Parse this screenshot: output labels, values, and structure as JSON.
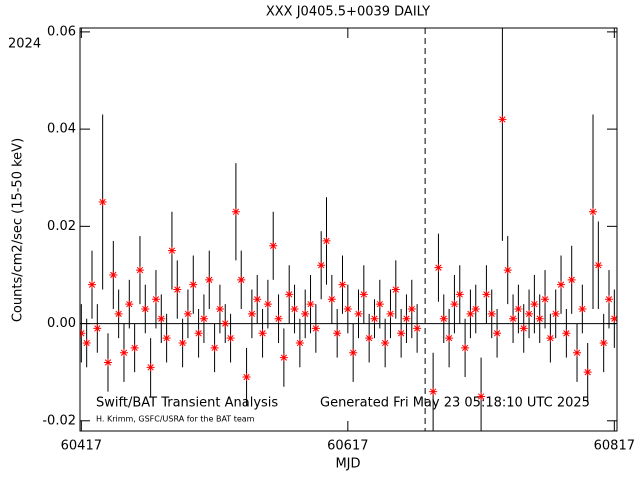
{
  "chart_data": {
    "type": "errorbar-scatter",
    "title": "XXX J0405.5+0039 DAILY",
    "year_label": "2024",
    "xlabel": "MJD",
    "ylabel": "Counts/cm2/sec (15-50 keV)",
    "annotations": [
      "Swift/BAT Transient Analysis",
      "Generated Fri May 23 05:18:10 UTC 2025",
      "H. Krimm, GSFC/USRA for the BAT team"
    ],
    "xlim": [
      60416,
      60819
    ],
    "ylim": [
      -0.0221,
      0.0608
    ],
    "xticks": [
      60417,
      60617,
      60817
    ],
    "yticks": [
      {
        "value": -0.02,
        "label": "-0.02"
      },
      {
        "value": 0,
        "label": "0.00"
      },
      {
        "value": 0.02,
        "label": "0.02"
      },
      {
        "value": 0.04,
        "label": "0.04"
      },
      {
        "value": 0.06,
        "label": "0.06"
      }
    ],
    "vline": 60675,
    "marker_color": "#ff0000",
    "errorbar_color": "#000000",
    "x": [
      60417,
      60421,
      60425,
      60429,
      60433,
      60437,
      60441,
      60445,
      60449,
      60453,
      60457,
      60461,
      60465,
      60469,
      60473,
      60477,
      60481,
      60485,
      60489,
      60493,
      60497,
      60501,
      60505,
      60509,
      60513,
      60517,
      60521,
      60525,
      60529,
      60533,
      60537,
      60541,
      60545,
      60549,
      60553,
      60557,
      60561,
      60565,
      60569,
      60573,
      60577,
      60581,
      60585,
      60589,
      60593,
      60597,
      60601,
      60605,
      60609,
      60613,
      60617,
      60621,
      60625,
      60629,
      60633,
      60637,
      60641,
      60645,
      60649,
      60653,
      60657,
      60661,
      60665,
      60669,
      60681,
      60685,
      60689,
      60693,
      60697,
      60701,
      60705,
      60709,
      60713,
      60717,
      60721,
      60725,
      60729,
      60733,
      60737,
      60741,
      60745,
      60749,
      60753,
      60757,
      60761,
      60765,
      60769,
      60773,
      60777,
      60781,
      60785,
      60789,
      60793,
      60797,
      60801,
      60805,
      60809,
      60813,
      60817
    ],
    "values": [
      -0.002,
      -0.004,
      0.008,
      -0.001,
      0.025,
      -0.008,
      0.01,
      0.002,
      -0.006,
      0.004,
      -0.005,
      0.011,
      0.003,
      -0.009,
      0.005,
      0.001,
      -0.003,
      0.015,
      0.007,
      -0.004,
      0.002,
      0.008,
      -0.002,
      0.001,
      0.009,
      -0.005,
      0.003,
      0.0,
      -0.003,
      0.023,
      0.009,
      -0.011,
      0.002,
      0.005,
      -0.002,
      0.004,
      0.016,
      0.001,
      -0.007,
      0.006,
      0.003,
      -0.004,
      0.002,
      0.004,
      -0.001,
      0.012,
      0.017,
      0.005,
      -0.002,
      0.008,
      0.003,
      -0.006,
      0.002,
      0.006,
      -0.003,
      0.001,
      0.004,
      -0.004,
      0.002,
      0.007,
      -0.002,
      0.001,
      0.003,
      -0.001,
      -0.014,
      0.0115,
      0.001,
      -0.003,
      0.004,
      0.006,
      -0.005,
      0.002,
      0.003,
      -0.015,
      0.006,
      0.002,
      -0.002,
      0.042,
      0.011,
      0.001,
      0.003,
      -0.001,
      0.002,
      0.004,
      0.001,
      0.005,
      -0.003,
      0.002,
      0.008,
      -0.002,
      0.009,
      -0.006,
      0.003,
      -0.01,
      0.023,
      0.012,
      -0.004,
      0.005,
      0.001
    ],
    "errors": [
      0.006,
      0.005,
      0.007,
      0.005,
      0.018,
      0.006,
      0.007,
      0.005,
      0.006,
      0.005,
      0.005,
      0.007,
      0.005,
      0.006,
      0.006,
      0.005,
      0.005,
      0.008,
      0.006,
      0.005,
      0.005,
      0.006,
      0.005,
      0.005,
      0.006,
      0.005,
      0.005,
      0.004,
      0.005,
      0.01,
      0.006,
      0.006,
      0.005,
      0.005,
      0.005,
      0.005,
      0.007,
      0.005,
      0.006,
      0.006,
      0.005,
      0.005,
      0.005,
      0.006,
      0.005,
      0.007,
      0.009,
      0.005,
      0.005,
      0.006,
      0.005,
      0.006,
      0.005,
      0.006,
      0.005,
      0.004,
      0.005,
      0.005,
      0.005,
      0.006,
      0.005,
      0.005,
      0.006,
      0.005,
      0.008,
      0.007,
      0.005,
      0.006,
      0.006,
      0.006,
      0.006,
      0.005,
      0.005,
      0.008,
      0.006,
      0.005,
      0.005,
      0.025,
      0.007,
      0.005,
      0.005,
      0.005,
      0.005,
      0.006,
      0.005,
      0.006,
      0.005,
      0.005,
      0.006,
      0.005,
      0.007,
      0.006,
      0.005,
      0.006,
      0.02,
      0.009,
      0.006,
      0.006,
      0.006
    ]
  }
}
